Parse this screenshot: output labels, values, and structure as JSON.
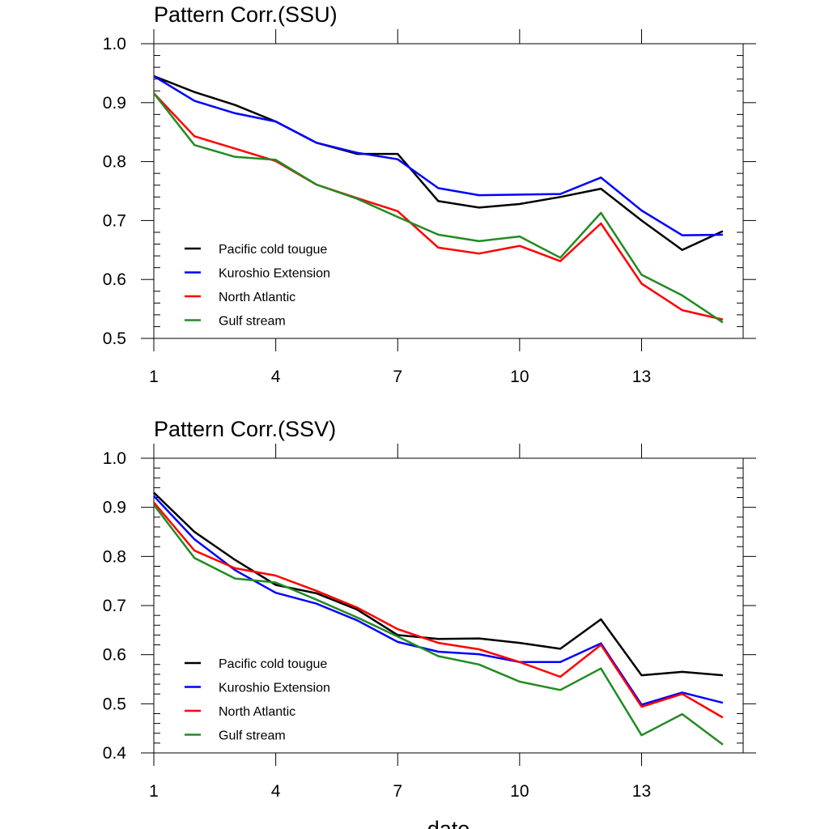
{
  "chart_data": [
    {
      "type": "line",
      "title": "Pattern Corr.(SSU)",
      "xlabel": "",
      "ylabel": "",
      "xlim": [
        1,
        15.5
      ],
      "ylim": [
        0.5,
        1.0
      ],
      "xticks": [
        1,
        4,
        7,
        10,
        13
      ],
      "yticks": [
        0.5,
        0.6,
        0.7,
        0.8,
        0.9,
        1.0
      ],
      "ytick_labels": [
        "0.5",
        "0.6",
        "0.7",
        "0.8",
        "0.9",
        "1.0"
      ],
      "grid": false,
      "legend_position": "bottom-left",
      "x": [
        1,
        2,
        3,
        4,
        5,
        6,
        7,
        8,
        9,
        10,
        11,
        12,
        13,
        14,
        15
      ],
      "series": [
        {
          "name": "Pacific cold tougue",
          "color": "#000000",
          "values": [
            0.945,
            0.918,
            0.896,
            0.868,
            0.832,
            0.813,
            0.813,
            0.733,
            0.722,
            0.728,
            0.74,
            0.754,
            0.7,
            0.65,
            0.682
          ]
        },
        {
          "name": "Kuroshio Extension",
          "color": "#0000ff",
          "values": [
            0.945,
            0.903,
            0.882,
            0.868,
            0.832,
            0.815,
            0.804,
            0.755,
            0.743,
            0.744,
            0.745,
            0.773,
            0.717,
            0.675,
            0.676
          ]
        },
        {
          "name": "North Atlantic",
          "color": "#ff0000",
          "values": [
            0.916,
            0.843,
            0.822,
            0.801,
            0.761,
            0.738,
            0.716,
            0.654,
            0.644,
            0.657,
            0.631,
            0.695,
            0.593,
            0.548,
            0.532
          ]
        },
        {
          "name": "Gulf stream",
          "color": "#228b22",
          "values": [
            0.916,
            0.828,
            0.808,
            0.803,
            0.761,
            0.737,
            0.706,
            0.676,
            0.665,
            0.673,
            0.637,
            0.713,
            0.608,
            0.573,
            0.527
          ]
        }
      ]
    },
    {
      "type": "line",
      "title": "Pattern Corr.(SSV)",
      "xlabel": "date",
      "ylabel": "",
      "xlim": [
        1,
        15.5
      ],
      "ylim": [
        0.4,
        1.0
      ],
      "xticks": [
        1,
        4,
        7,
        10,
        13
      ],
      "yticks": [
        0.4,
        0.5,
        0.6,
        0.7,
        0.8,
        0.9,
        1.0
      ],
      "ytick_labels": [
        "0.4",
        "0.5",
        "0.6",
        "0.7",
        "0.8",
        "0.9",
        "1.0"
      ],
      "grid": false,
      "legend_position": "bottom-left",
      "x": [
        1,
        2,
        3,
        4,
        5,
        6,
        7,
        8,
        9,
        10,
        11,
        12,
        13,
        14,
        15
      ],
      "series": [
        {
          "name": "Pacific cold tougue",
          "color": "#000000",
          "values": [
            0.93,
            0.85,
            0.793,
            0.742,
            0.725,
            0.692,
            0.64,
            0.632,
            0.633,
            0.624,
            0.612,
            0.672,
            0.558,
            0.565,
            0.558
          ]
        },
        {
          "name": "Kuroshio Extension",
          "color": "#0000ff",
          "values": [
            0.923,
            0.835,
            0.772,
            0.726,
            0.704,
            0.67,
            0.626,
            0.606,
            0.601,
            0.585,
            0.585,
            0.623,
            0.498,
            0.523,
            0.502
          ]
        },
        {
          "name": "North Atlantic",
          "color": "#ff0000",
          "values": [
            0.91,
            0.812,
            0.776,
            0.761,
            0.73,
            0.696,
            0.652,
            0.624,
            0.611,
            0.585,
            0.555,
            0.62,
            0.494,
            0.52,
            0.472
          ]
        },
        {
          "name": "Gulf stream",
          "color": "#228b22",
          "values": [
            0.905,
            0.797,
            0.755,
            0.747,
            0.712,
            0.676,
            0.637,
            0.597,
            0.58,
            0.545,
            0.528,
            0.572,
            0.436,
            0.479,
            0.417
          ]
        }
      ]
    }
  ]
}
